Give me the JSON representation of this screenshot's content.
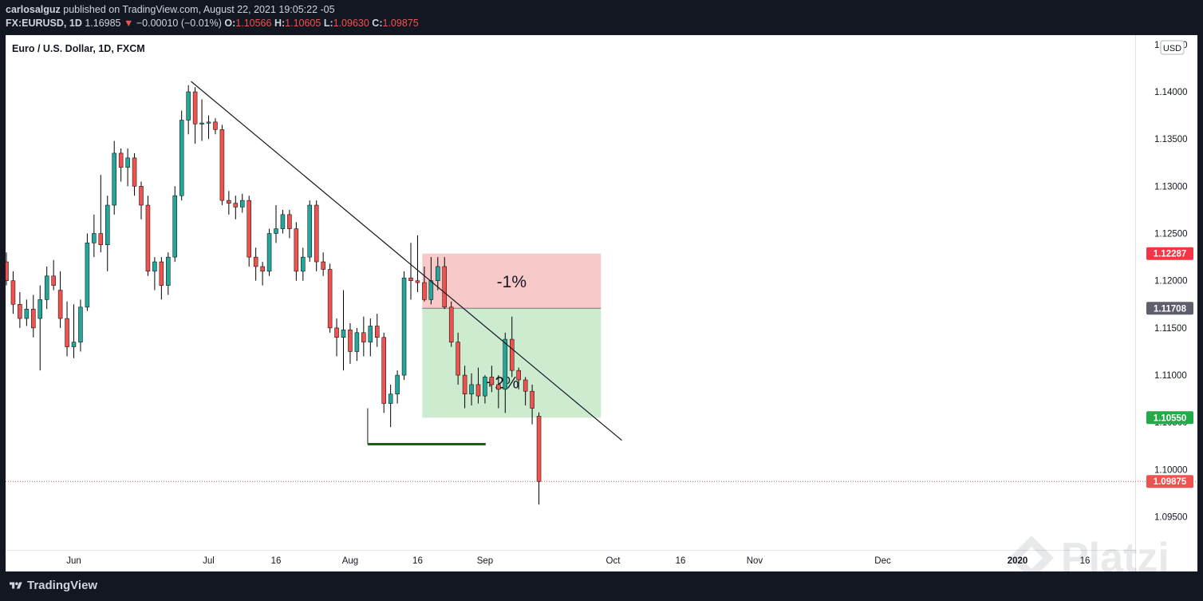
{
  "header": {
    "author": "carlosalguz",
    "published_text": "published on TradingView.com, August 22, 2021 19:05:22 -05",
    "symbol": "FX:EURUSD, 1D",
    "last": "1.16985",
    "change_arrow": "▼",
    "change": "−0.00010 (−0.01%)",
    "o_label": "O:",
    "o_value": "1.10566",
    "h_label": "H:",
    "h_value": "1.10605",
    "l_label": "L:",
    "l_value": "1.09630",
    "c_label": "C:",
    "c_value": "1.09875"
  },
  "footer": {
    "brand": "TradingView"
  },
  "watermark": "Platzi",
  "colors": {
    "up": "#26a69a",
    "down": "#ef5350",
    "risk_zone": "#f8c9c9",
    "reward_zone": "#cdebcf",
    "stop_tag": "#f23645",
    "target_tag": "#22ab48",
    "entry_tag": "#5d606b"
  },
  "chart_data": {
    "type": "candlestick",
    "title": "Euro / U.S. Dollar, 1D, FXCM",
    "currency": "USD",
    "ylim": [
      1.0915,
      1.146
    ],
    "y_ticks": [
      {
        "value": 1.14,
        "label": "1.14000"
      },
      {
        "value": 1.135,
        "label": "1.13500"
      },
      {
        "value": 1.13,
        "label": "1.13000"
      },
      {
        "value": 1.125,
        "label": "1.12500"
      },
      {
        "value": 1.12,
        "label": "1.12000"
      },
      {
        "value": 1.115,
        "label": "1.11500"
      },
      {
        "value": 1.11,
        "label": "1.11000"
      },
      {
        "value": 1.105,
        "label": "1.10500"
      },
      {
        "value": 1.1,
        "label": "1.10000"
      },
      {
        "value": 1.095,
        "label": "1.09500"
      },
      {
        "value": 1.145,
        "label": "1.14500"
      }
    ],
    "x_ticks": [
      {
        "i": -1,
        "label": "16"
      },
      {
        "i": 10,
        "label": "Jun"
      },
      {
        "i": 30,
        "label": "Jul"
      },
      {
        "i": 40,
        "label": "16"
      },
      {
        "i": 51,
        "label": "Aug"
      },
      {
        "i": 61,
        "label": "16"
      },
      {
        "i": 71,
        "label": "Sep"
      },
      {
        "i": 90,
        "label": "Oct"
      },
      {
        "i": 100,
        "label": "16"
      },
      {
        "i": 111,
        "label": "Nov"
      },
      {
        "i": 130,
        "label": "Dec"
      },
      {
        "i": 150,
        "label": "2020"
      },
      {
        "i": 160,
        "label": "16"
      }
    ],
    "price_tags": [
      {
        "name": "stop",
        "value": 1.12287,
        "label": "1.12287"
      },
      {
        "name": "entry",
        "value": 1.11708,
        "label": "1.11708"
      },
      {
        "name": "target",
        "value": 1.1055,
        "label": "1.10550"
      },
      {
        "name": "last",
        "value": 1.09875,
        "label": "1.09875"
      }
    ],
    "candles": [
      [
        1.122,
        1.123,
        1.1195,
        1.12
      ],
      [
        1.12,
        1.121,
        1.1165,
        1.1175
      ],
      [
        1.1175,
        1.1188,
        1.115,
        1.116
      ],
      [
        1.116,
        1.118,
        1.1152,
        1.117
      ],
      [
        1.117,
        1.1185,
        1.114,
        1.115
      ],
      [
        1.116,
        1.1195,
        1.1105,
        1.118
      ],
      [
        1.118,
        1.1215,
        1.117,
        1.1205
      ],
      [
        1.1205,
        1.1222,
        1.119,
        1.1195
      ],
      [
        1.119,
        1.121,
        1.115,
        1.116
      ],
      [
        1.116,
        1.1178,
        1.112,
        1.113
      ],
      [
        1.113,
        1.1175,
        1.1118,
        1.1135
      ],
      [
        1.1135,
        1.118,
        1.1125,
        1.1172
      ],
      [
        1.1172,
        1.125,
        1.1168,
        1.124
      ],
      [
        1.124,
        1.127,
        1.1225,
        1.125
      ],
      [
        1.125,
        1.1312,
        1.123,
        1.1238
      ],
      [
        1.1238,
        1.129,
        1.121,
        1.128
      ],
      [
        1.128,
        1.1348,
        1.127,
        1.1335
      ],
      [
        1.1335,
        1.134,
        1.1305,
        1.132
      ],
      [
        1.132,
        1.134,
        1.13,
        1.133
      ],
      [
        1.133,
        1.1335,
        1.129,
        1.13
      ],
      [
        1.13,
        1.1305,
        1.1265,
        1.128
      ],
      [
        1.128,
        1.129,
        1.1205,
        1.121
      ],
      [
        1.121,
        1.1225,
        1.119,
        1.122
      ],
      [
        1.122,
        1.1225,
        1.118,
        1.1195
      ],
      [
        1.1195,
        1.123,
        1.1185,
        1.1225
      ],
      [
        1.1225,
        1.13,
        1.122,
        1.129
      ],
      [
        1.129,
        1.138,
        1.1285,
        1.137
      ],
      [
        1.137,
        1.1407,
        1.1355,
        1.14
      ],
      [
        1.14,
        1.1405,
        1.1345,
        1.1366
      ],
      [
        1.1366,
        1.1392,
        1.1348,
        1.1367
      ],
      [
        1.1367,
        1.1375,
        1.135,
        1.1368
      ],
      [
        1.1368,
        1.1372,
        1.1355,
        1.136
      ],
      [
        1.136,
        1.1365,
        1.128,
        1.1285
      ],
      [
        1.1285,
        1.1295,
        1.127,
        1.1282
      ],
      [
        1.1282,
        1.129,
        1.1265,
        1.1278
      ],
      [
        1.1278,
        1.1292,
        1.1272,
        1.1285
      ],
      [
        1.1285,
        1.129,
        1.1215,
        1.1225
      ],
      [
        1.1225,
        1.1235,
        1.12,
        1.1215
      ],
      [
        1.1215,
        1.122,
        1.1195,
        1.121
      ],
      [
        1.121,
        1.1255,
        1.1205,
        1.125
      ],
      [
        1.125,
        1.128,
        1.124,
        1.1255
      ],
      [
        1.1255,
        1.1275,
        1.125,
        1.127
      ],
      [
        1.127,
        1.1275,
        1.1245,
        1.1255
      ],
      [
        1.1255,
        1.1262,
        1.12,
        1.121
      ],
      [
        1.121,
        1.1235,
        1.12,
        1.1225
      ],
      [
        1.1225,
        1.1285,
        1.122,
        1.128
      ],
      [
        1.128,
        1.1285,
        1.121,
        1.122
      ],
      [
        1.122,
        1.123,
        1.1205,
        1.1212
      ],
      [
        1.1212,
        1.1218,
        1.1145,
        1.115
      ],
      [
        1.115,
        1.116,
        1.112,
        1.114
      ],
      [
        1.114,
        1.119,
        1.1105,
        1.1148
      ],
      [
        1.1148,
        1.1155,
        1.1112,
        1.1125
      ],
      [
        1.1125,
        1.115,
        1.1115,
        1.1145
      ],
      [
        1.1145,
        1.1162,
        1.112,
        1.1135
      ],
      [
        1.1135,
        1.116,
        1.112,
        1.1152
      ],
      [
        1.1152,
        1.1165,
        1.113,
        1.114
      ],
      [
        1.114,
        1.1145,
        1.106,
        1.107
      ],
      [
        1.107,
        1.109,
        1.1045,
        1.108
      ],
      [
        1.108,
        1.1105,
        1.107,
        1.11
      ],
      [
        1.11,
        1.121,
        1.1095,
        1.1203
      ],
      [
        1.1203,
        1.124,
        1.118,
        1.12
      ],
      [
        1.12,
        1.1248,
        1.1188,
        1.1198
      ],
      [
        1.1198,
        1.1215,
        1.1178,
        1.118
      ],
      [
        1.118,
        1.1225,
        1.1175,
        1.12
      ],
      [
        1.12,
        1.1225,
        1.119,
        1.1215
      ],
      [
        1.1215,
        1.1225,
        1.117,
        1.1172
      ],
      [
        1.1172,
        1.1178,
        1.113,
        1.1135
      ],
      [
        1.1135,
        1.1145,
        1.109,
        1.11
      ],
      [
        1.11,
        1.111,
        1.1065,
        1.108
      ],
      [
        1.108,
        1.1102,
        1.1068,
        1.109
      ],
      [
        1.109,
        1.1108,
        1.107,
        1.1078
      ],
      [
        1.1078,
        1.11,
        1.107,
        1.1098
      ],
      [
        1.1098,
        1.111,
        1.1082,
        1.109
      ],
      [
        1.109,
        1.11,
        1.1065,
        1.1085
      ],
      [
        1.1085,
        1.1145,
        1.106,
        1.1138
      ],
      [
        1.1138,
        1.1162,
        1.1098,
        1.1105
      ],
      [
        1.1105,
        1.1108,
        1.1085,
        1.1095
      ],
      [
        1.1095,
        1.1098,
        1.1068,
        1.1083
      ],
      [
        1.1083,
        1.109,
        1.1048,
        1.1065
      ],
      [
        1.10566,
        1.10605,
        1.0963,
        1.09875
      ]
    ],
    "trendline": {
      "from": {
        "i": 27.4,
        "price": 1.1411
      },
      "to": {
        "i": 91.3,
        "price": 1.1031
      }
    },
    "support_line": {
      "from_i": 53.6,
      "to_i": 71.1,
      "price": 1.1027,
      "anchor_top": 1.1065
    },
    "position": {
      "start_i": 61.7,
      "end_i": 88.2,
      "stop": 1.12287,
      "entry": 1.11708,
      "target": 1.1055,
      "risk_label": "-1%",
      "reward_label": "+2%"
    }
  }
}
